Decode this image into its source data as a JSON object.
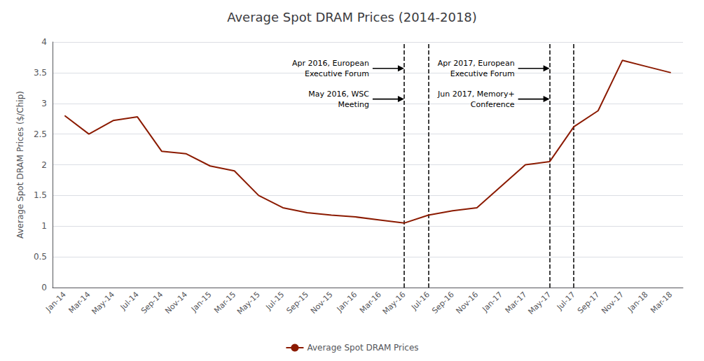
{
  "chart_data": {
    "type": "line",
    "title": "Average Spot DRAM Prices (2014-2018)",
    "ylabel": "Average Spot DRAM Prices ($/Chip)",
    "categories": [
      "Jan-14",
      "Mar-14",
      "May-14",
      "Jul-14",
      "Sep-14",
      "Nov-14",
      "Jan-15",
      "Mar-15",
      "May-15",
      "Jul-15",
      "Sep-15",
      "Nov-15",
      "Jan-16",
      "Mar-16",
      "May-16",
      "Jul-16",
      "Sep-16",
      "Nov-16",
      "Jan-17",
      "Mar-17",
      "May-17",
      "Jul-17",
      "Sep-17",
      "Nov-17",
      "Jan-18",
      "Mar-18"
    ],
    "series": [
      {
        "name": "Average Spot DRAM Prices",
        "color": "#8B1A00",
        "values": [
          2.8,
          2.5,
          2.72,
          2.78,
          2.22,
          2.18,
          1.98,
          1.9,
          1.5,
          1.3,
          1.22,
          1.18,
          1.15,
          1.1,
          1.05,
          1.18,
          1.25,
          1.3,
          1.65,
          2.0,
          2.05,
          2.62,
          2.88,
          3.7,
          3.6,
          3.5
        ]
      }
    ],
    "ylim": [
      0,
      4.0
    ],
    "yticks": [
      0,
      0.5,
      1,
      1.5,
      2,
      2.5,
      3,
      3.5,
      4
    ],
    "grid": true,
    "legend": "bottom",
    "vertical_lines": [
      "May-16",
      "Jul-16",
      "May-17",
      "Jul-17"
    ],
    "annotations": [
      {
        "text": "Apr 2016, European\nExecutive Forum",
        "x": "May-16",
        "y": 3.57
      },
      {
        "text": "May 2016, WSC\nMeeting",
        "x": "May-16",
        "y": 3.07
      },
      {
        "text": "Apr 2017, European\nExecutive Forum",
        "x": "May-17",
        "y": 3.57
      },
      {
        "text": "Jun 2017, Memory+\nConference",
        "x": "May-17",
        "y": 3.07
      }
    ]
  }
}
